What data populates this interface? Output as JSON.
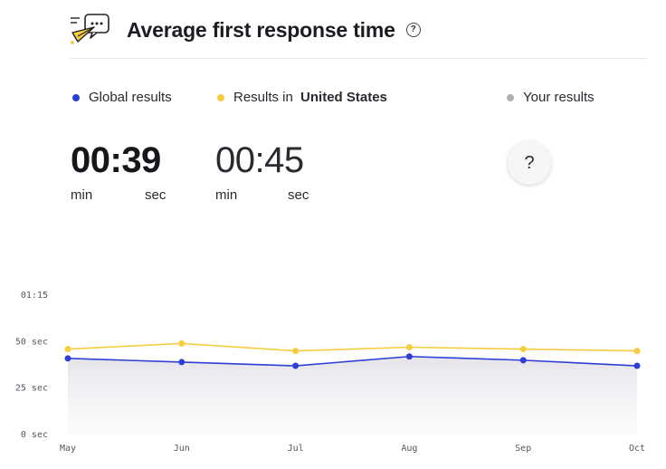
{
  "header": {
    "title": "Average first response time",
    "help_icon": "question-circle-icon",
    "logo_icon": "chat-plane-logo-icon"
  },
  "legend": {
    "global": {
      "label": "Global results",
      "color": "#2f3fd6"
    },
    "country": {
      "label_prefix": "Results in ",
      "label_bold": "United States",
      "color": "#f6cc40"
    },
    "yours": {
      "label": "Your results",
      "color": "#b0b0b0"
    }
  },
  "metrics": {
    "global": {
      "value": "00:39",
      "min_label": "min",
      "sec_label": "sec"
    },
    "country": {
      "value": "00:45",
      "min_label": "min",
      "sec_label": "sec"
    },
    "yours": {
      "button_label": "?"
    }
  },
  "chart_data": {
    "type": "line",
    "categories": [
      "May",
      "Jun",
      "Jul",
      "Aug",
      "Sep",
      "Oct"
    ],
    "y_tick_labels": [
      "0 sec",
      "25 sec",
      "50 sec",
      "01:15"
    ],
    "y_ticks": [
      0,
      25,
      50,
      75
    ],
    "ylim": [
      0,
      75
    ],
    "grid": false,
    "series": [
      {
        "name": "Results in United States",
        "color": "#f6cc40",
        "values": [
          46,
          49,
          45,
          47,
          46,
          45
        ]
      },
      {
        "name": "Global results",
        "color": "#2f3fd6",
        "values": [
          41,
          39,
          37,
          42,
          40,
          37
        ],
        "fill": true
      }
    ]
  }
}
